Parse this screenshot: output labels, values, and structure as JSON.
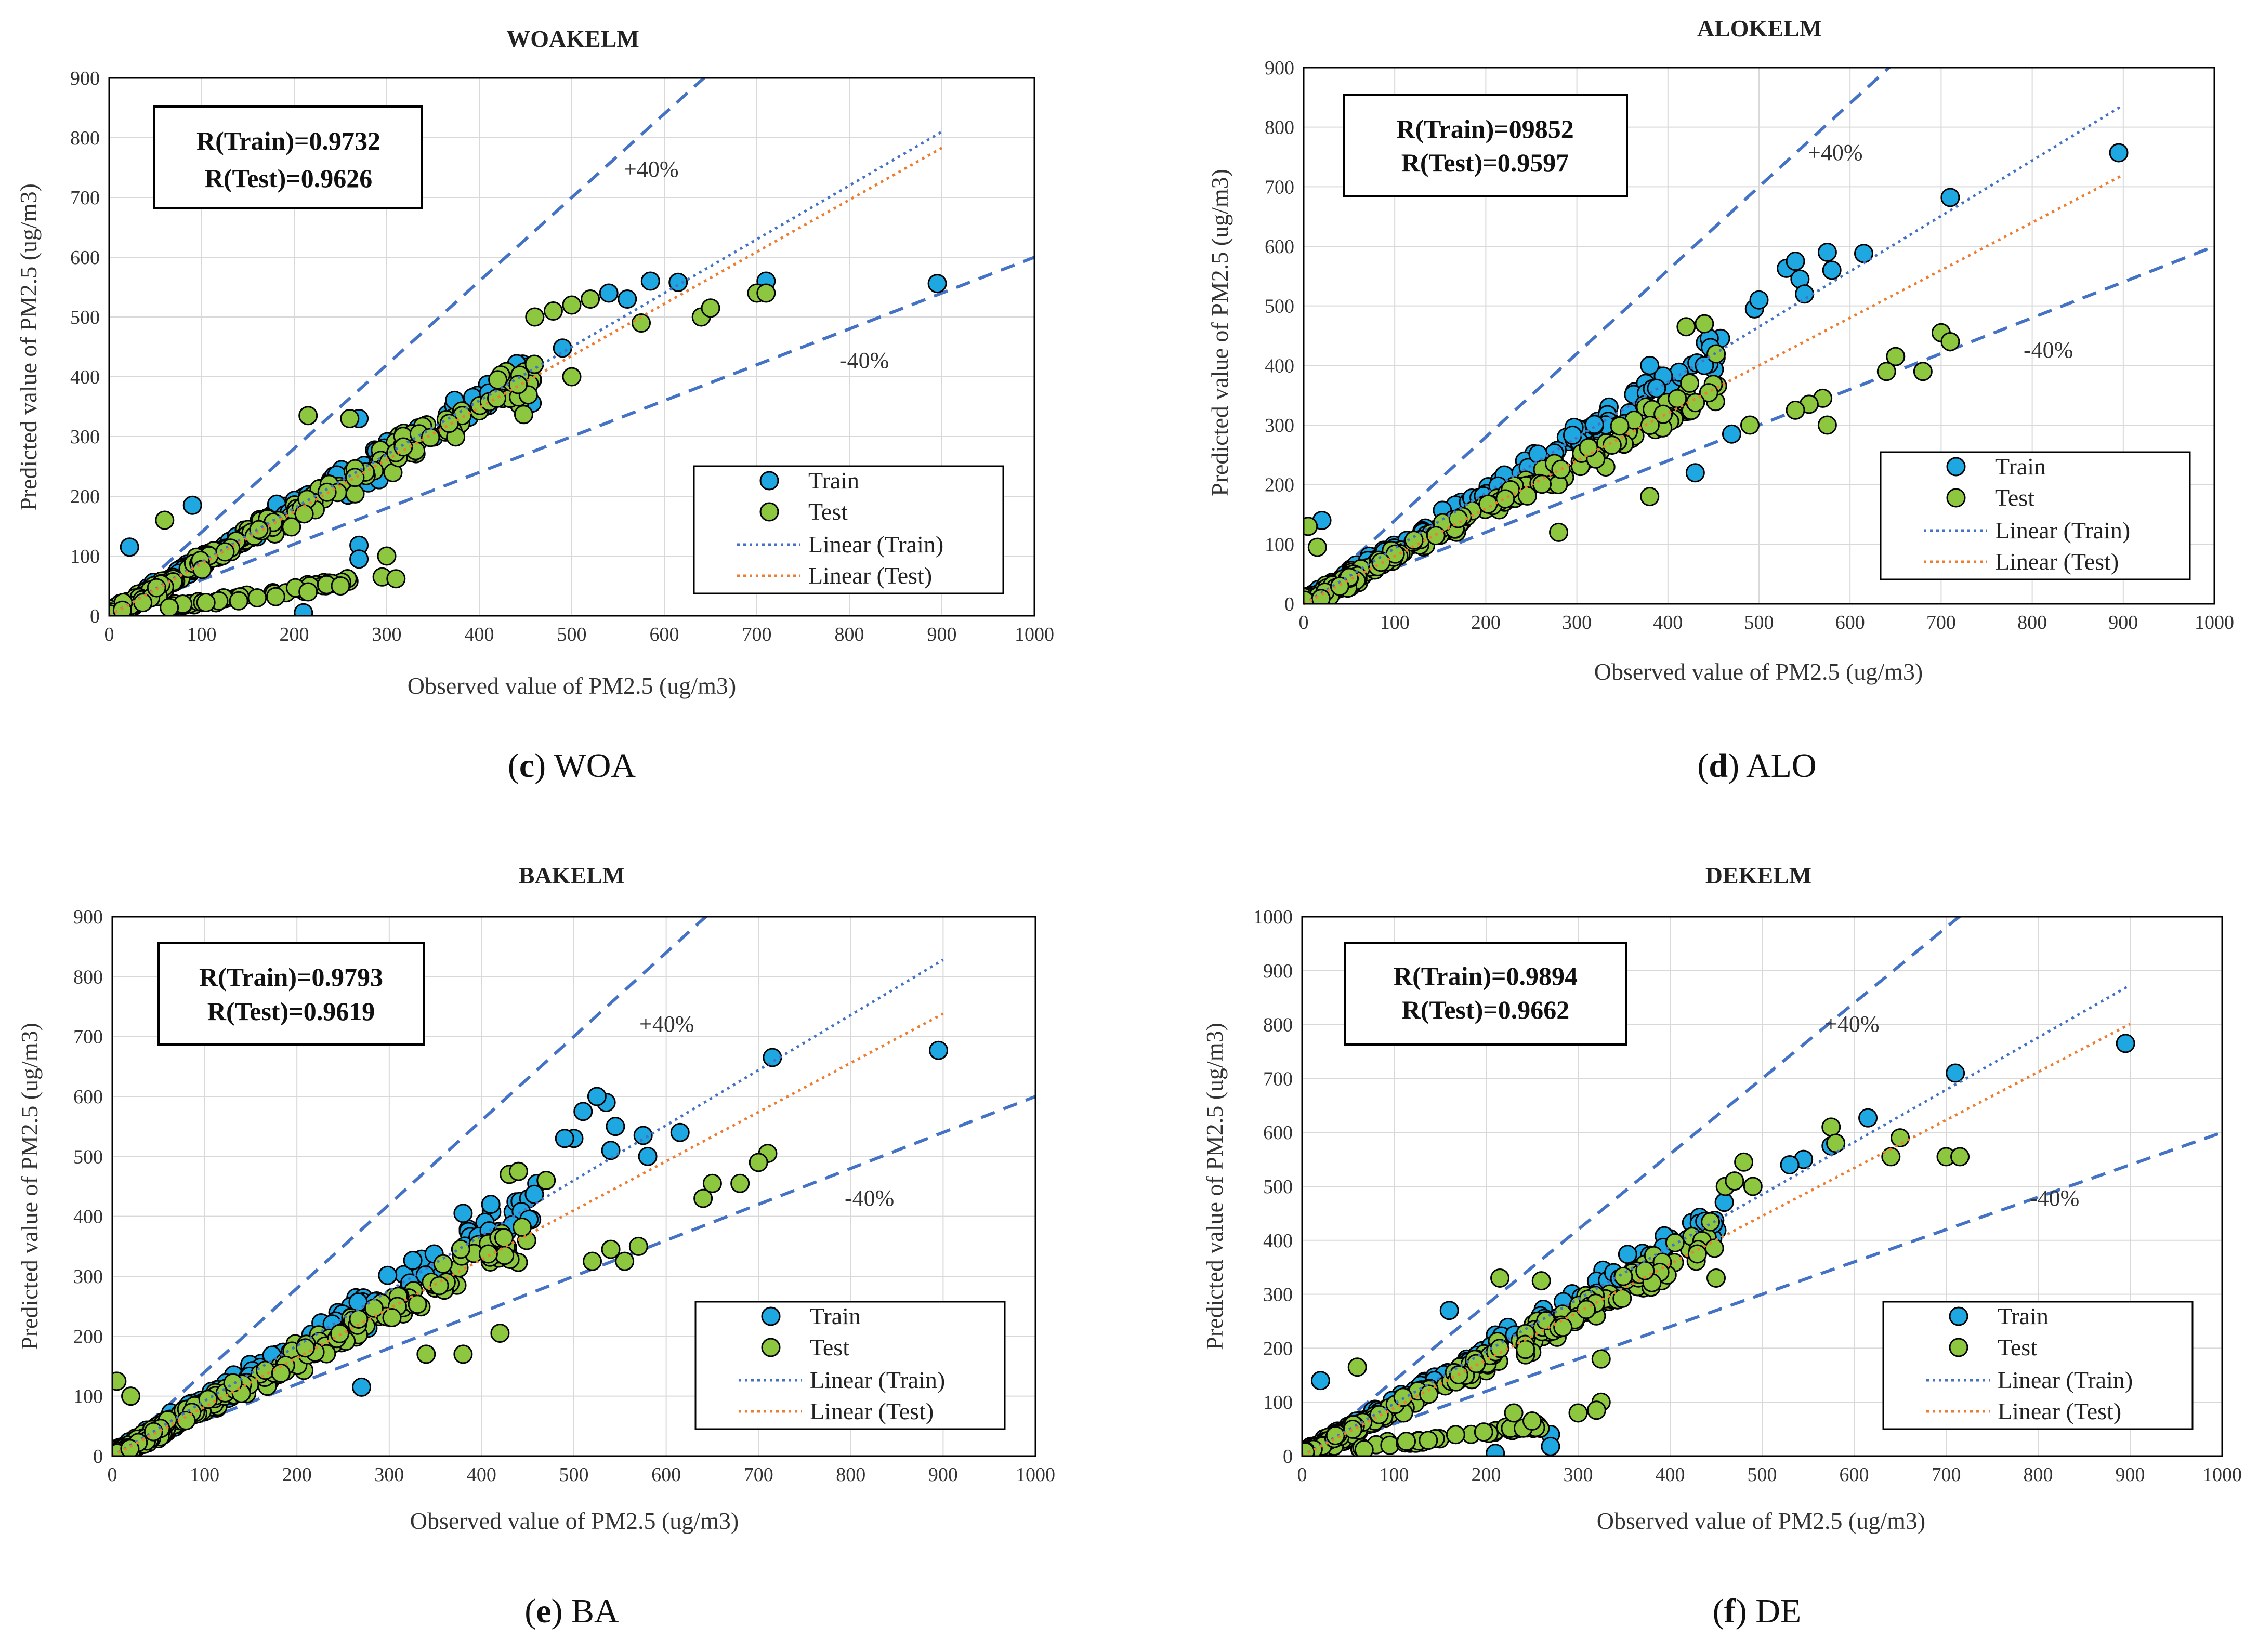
{
  "colors": {
    "train": "#1EA7E0",
    "test": "#8DC63F",
    "marker_edge": "#000000",
    "band": "#4472C4",
    "fit_train": "#4472C4",
    "fit_test": "#ED7D31",
    "grid": "#D9D9D9"
  },
  "legend": {
    "train": "Train",
    "test": "Test",
    "linear_train": "Linear (Train)",
    "linear_test": "Linear (Test)"
  },
  "chart_data": [
    {
      "id": "c",
      "type": "scatter",
      "title": "WOAKELM",
      "xlabel": "Observed value of PM2.5 (ug/m3)",
      "ylabel": "Predicted value of PM2.5 (ug/m3)",
      "xlim": [
        0,
        1000
      ],
      "ylim": [
        0,
        900
      ],
      "xticks": [
        "0",
        "100",
        "200",
        "300",
        "400",
        "500",
        "600",
        "700",
        "800",
        "900",
        "1000"
      ],
      "yticks": [
        "0",
        "100",
        "200",
        "300",
        "400",
        "500",
        "600",
        "700",
        "800",
        "900"
      ],
      "r_train": "R(Train)=0.9732",
      "r_test": "R(Test)=0.9626",
      "upper_label": "+40%",
      "lower_label": "-40%",
      "fit_train": {
        "slope": 0.9,
        "intercept": 0
      },
      "fit_test": {
        "slope": 0.87,
        "intercept": 0
      },
      "caption_letter": "c",
      "caption_text": "WOA",
      "train_outliers": [
        [
          585,
          560
        ],
        [
          615,
          558
        ],
        [
          710,
          560
        ],
        [
          895,
          556
        ],
        [
          540,
          540
        ],
        [
          560,
          530
        ],
        [
          490,
          448
        ],
        [
          270,
          118
        ],
        [
          270,
          95
        ],
        [
          210,
          5
        ],
        [
          22,
          115
        ],
        [
          90,
          185
        ],
        [
          270,
          330
        ]
      ],
      "test_outliers": [
        [
          640,
          500
        ],
        [
          650,
          515
        ],
        [
          700,
          540
        ],
        [
          710,
          540
        ],
        [
          460,
          500
        ],
        [
          480,
          510
        ],
        [
          500,
          520
        ],
        [
          520,
          530
        ],
        [
          575,
          490
        ],
        [
          300,
          100
        ],
        [
          295,
          65
        ],
        [
          310,
          62
        ],
        [
          215,
          40
        ],
        [
          235,
          52
        ],
        [
          250,
          50
        ],
        [
          140,
          25
        ],
        [
          160,
          30
        ],
        [
          180,
          32
        ],
        [
          60,
          160
        ],
        [
          215,
          335
        ],
        [
          260,
          330
        ],
        [
          420,
          395
        ],
        [
          500,
          400
        ]
      ],
      "low_cluster": true,
      "seed": 11
    },
    {
      "id": "d",
      "type": "scatter",
      "title": "ALOKELM",
      "xlabel": "Observed value of PM2.5 (ug/m3)",
      "ylabel": "Predicted value of PM2.5 (ug/m3)",
      "xlim": [
        0,
        1000
      ],
      "ylim": [
        0,
        900
      ],
      "xticks": [
        "0",
        "100",
        "200",
        "300",
        "400",
        "500",
        "600",
        "700",
        "800",
        "900",
        "1000"
      ],
      "yticks": [
        "0",
        "100",
        "200",
        "300",
        "400",
        "500",
        "600",
        "700",
        "800",
        "900"
      ],
      "r_train": "R(Train)=09852",
      "r_test": "R(Test)=0.9597",
      "upper_label": "+40%",
      "lower_label": "-40%",
      "fit_train": {
        "slope": 0.93,
        "intercept": 0
      },
      "fit_test": {
        "slope": 0.8,
        "intercept": 0
      },
      "caption_letter": "d",
      "caption_text": "ALO",
      "train_outliers": [
        [
          895,
          757
        ],
        [
          710,
          682
        ],
        [
          615,
          588
        ],
        [
          580,
          560
        ],
        [
          575,
          590
        ],
        [
          530,
          563
        ],
        [
          540,
          575
        ],
        [
          545,
          545
        ],
        [
          550,
          520
        ],
        [
          495,
          495
        ],
        [
          500,
          510
        ],
        [
          440,
          400
        ],
        [
          380,
          400
        ],
        [
          470,
          285
        ],
        [
          430,
          220
        ],
        [
          20,
          140
        ]
      ],
      "test_outliers": [
        [
          700,
          455
        ],
        [
          710,
          440
        ],
        [
          650,
          415
        ],
        [
          640,
          390
        ],
        [
          680,
          390
        ],
        [
          575,
          300
        ],
        [
          570,
          345
        ],
        [
          555,
          335
        ],
        [
          540,
          325
        ],
        [
          490,
          300
        ],
        [
          440,
          470
        ],
        [
          420,
          465
        ],
        [
          380,
          180
        ],
        [
          280,
          120
        ],
        [
          5,
          130
        ],
        [
          15,
          95
        ]
      ],
      "low_cluster": false,
      "seed": 23
    },
    {
      "id": "e",
      "type": "scatter",
      "title": "BAKELM",
      "xlabel": "Observed value of PM2.5 (ug/m3)",
      "ylabel": "Predicted value of PM2.5 (ug/m3)",
      "xlim": [
        0,
        1000
      ],
      "ylim": [
        0,
        900
      ],
      "xticks": [
        "0",
        "100",
        "200",
        "300",
        "400",
        "500",
        "600",
        "700",
        "800",
        "900",
        "1000"
      ],
      "yticks": [
        "0",
        "100",
        "200",
        "300",
        "400",
        "500",
        "600",
        "700",
        "800",
        "900"
      ],
      "r_train": "R(Train)=0.9793",
      "r_test": "R(Test)=0.9619",
      "upper_label": "+40%",
      "lower_label": "-40%",
      "fit_train": {
        "slope": 0.92,
        "intercept": 0
      },
      "fit_test": {
        "slope": 0.82,
        "intercept": 0
      },
      "caption_letter": "e",
      "caption_text": "BA",
      "train_outliers": [
        [
          895,
          677
        ],
        [
          715,
          665
        ],
        [
          615,
          540
        ],
        [
          580,
          500
        ],
        [
          575,
          535
        ],
        [
          540,
          510
        ],
        [
          545,
          550
        ],
        [
          535,
          590
        ],
        [
          525,
          600
        ],
        [
          510,
          575
        ],
        [
          500,
          530
        ],
        [
          490,
          530
        ],
        [
          270,
          115
        ],
        [
          380,
          405
        ],
        [
          410,
          420
        ]
      ],
      "test_outliers": [
        [
          710,
          505
        ],
        [
          700,
          490
        ],
        [
          680,
          455
        ],
        [
          650,
          455
        ],
        [
          640,
          430
        ],
        [
          570,
          350
        ],
        [
          555,
          325
        ],
        [
          540,
          345
        ],
        [
          520,
          325
        ],
        [
          430,
          470
        ],
        [
          440,
          475
        ],
        [
          470,
          460
        ],
        [
          420,
          205
        ],
        [
          380,
          170
        ],
        [
          340,
          170
        ],
        [
          5,
          125
        ],
        [
          20,
          100
        ]
      ],
      "low_cluster": false,
      "seed": 37
    },
    {
      "id": "f",
      "type": "scatter",
      "title": "DEKELM",
      "xlabel": "Observed value of PM2.5 (ug/m3)",
      "ylabel": "Predicted value of PM2.5 (ug/m3)",
      "xlim": [
        0,
        1000
      ],
      "ylim": [
        0,
        1000
      ],
      "xticks": [
        "0",
        "100",
        "200",
        "300",
        "400",
        "500",
        "600",
        "700",
        "800",
        "900",
        "1000"
      ],
      "yticks": [
        "0",
        "100",
        "200",
        "300",
        "400",
        "500",
        "600",
        "700",
        "800",
        "900",
        "1000"
      ],
      "r_train": "R(Train)=0.9894",
      "r_test": "R(Test)=0.9662",
      "upper_label": "+40%",
      "lower_label": "-40%",
      "fit_train": {
        "slope": 0.97,
        "intercept": 0
      },
      "fit_test": {
        "slope": 0.89,
        "intercept": 0
      },
      "caption_letter": "f",
      "caption_text": "DE",
      "train_outliers": [
        [
          895,
          765
        ],
        [
          710,
          710
        ],
        [
          615,
          627
        ],
        [
          580,
          580
        ],
        [
          575,
          575
        ],
        [
          545,
          550
        ],
        [
          530,
          540
        ],
        [
          270,
          40
        ],
        [
          270,
          18
        ],
        [
          210,
          5
        ],
        [
          20,
          140
        ],
        [
          160,
          270
        ]
      ],
      "test_outliers": [
        [
          700,
          555
        ],
        [
          715,
          555
        ],
        [
          640,
          555
        ],
        [
          650,
          590
        ],
        [
          575,
          610
        ],
        [
          580,
          580
        ],
        [
          490,
          500
        ],
        [
          460,
          500
        ],
        [
          470,
          510
        ],
        [
          480,
          545
        ],
        [
          450,
          330
        ],
        [
          325,
          100
        ],
        [
          320,
          85
        ],
        [
          300,
          80
        ],
        [
          325,
          180
        ],
        [
          230,
          80
        ],
        [
          250,
          65
        ],
        [
          60,
          165
        ],
        [
          215,
          330
        ],
        [
          260,
          325
        ]
      ],
      "low_cluster": true,
      "seed": 53
    }
  ]
}
